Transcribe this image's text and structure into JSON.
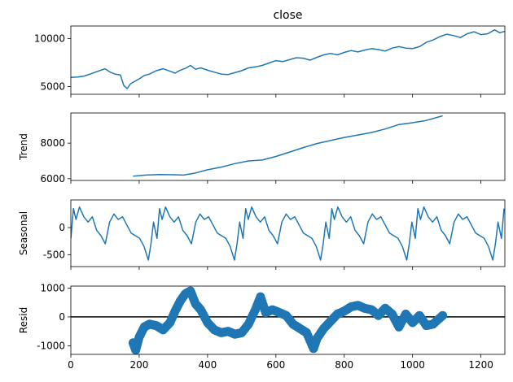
{
  "chart_data": [
    {
      "type": "line",
      "title": "close",
      "ylabel": "",
      "xlim": [
        0,
        1270
      ],
      "ylim": [
        4200,
        11300
      ],
      "yticks": [
        5000,
        10000
      ],
      "xticks": [
        0,
        200,
        400,
        600,
        800,
        1000,
        1200
      ],
      "show_xtick_labels": false,
      "color": "#1f77b4",
      "series": [
        {
          "x": [
            0,
            20,
            40,
            60,
            80,
            100,
            115,
            130,
            145,
            155,
            165,
            175,
            190,
            200,
            215,
            230,
            250,
            270,
            290,
            305,
            320,
            335,
            350,
            365,
            380,
            400,
            420,
            440,
            460,
            480,
            500,
            520,
            540,
            560,
            580,
            600,
            620,
            640,
            660,
            680,
            700,
            720,
            740,
            760,
            780,
            800,
            820,
            840,
            860,
            880,
            900,
            920,
            940,
            960,
            980,
            1000,
            1020,
            1040,
            1060,
            1080,
            1100,
            1120,
            1140,
            1160,
            1180,
            1200,
            1220,
            1240,
            1255,
            1270
          ],
          "y": [
            5950,
            6000,
            6100,
            6350,
            6600,
            6850,
            6500,
            6300,
            6200,
            5100,
            4800,
            5300,
            5600,
            5800,
            6150,
            6300,
            6650,
            6850,
            6600,
            6400,
            6700,
            6900,
            7200,
            6800,
            6950,
            6700,
            6500,
            6300,
            6250,
            6450,
            6650,
            6950,
            7050,
            7200,
            7450,
            7700,
            7600,
            7800,
            8000,
            7950,
            7750,
            8050,
            8300,
            8450,
            8300,
            8550,
            8750,
            8600,
            8800,
            8950,
            8850,
            8700,
            9000,
            9150,
            9000,
            8950,
            9150,
            9600,
            9850,
            10200,
            10450,
            10300,
            10100,
            10500,
            10700,
            10400,
            10500,
            10900,
            10600,
            10750
          ]
        }
      ]
    },
    {
      "type": "line",
      "title": "",
      "ylabel": "Trend",
      "xlim": [
        0,
        1270
      ],
      "ylim": [
        5900,
        9700
      ],
      "yticks": [
        6000,
        8000
      ],
      "xticks": [
        0,
        200,
        400,
        600,
        800,
        1000,
        1200
      ],
      "show_xtick_labels": false,
      "color": "#1f77b4",
      "series": [
        {
          "x": [
            182,
            220,
            260,
            300,
            330,
            360,
            400,
            440,
            480,
            520,
            560,
            600,
            640,
            680,
            720,
            760,
            800,
            840,
            880,
            920,
            960,
            1000,
            1040,
            1088
          ],
          "y": [
            6140,
            6200,
            6230,
            6220,
            6200,
            6300,
            6500,
            6650,
            6850,
            7000,
            7050,
            7250,
            7500,
            7750,
            7980,
            8150,
            8320,
            8460,
            8600,
            8800,
            9050,
            9150,
            9280,
            9540
          ]
        }
      ]
    },
    {
      "type": "line",
      "title": "",
      "ylabel": "Seasonal",
      "xlim": [
        0,
        1270
      ],
      "ylim": [
        -720,
        510
      ],
      "yticks": [
        -500,
        0
      ],
      "xticks": [
        0,
        200,
        400,
        600,
        800,
        1000,
        1200
      ],
      "show_xtick_labels": false,
      "color": "#1f77b4",
      "period": 252,
      "series": [
        {
          "phase": [
            0,
            0.03,
            0.06,
            0.1,
            0.15,
            0.2,
            0.25,
            0.3,
            0.35,
            0.4,
            0.45,
            0.5,
            0.55,
            0.6,
            0.65,
            0.7,
            0.75,
            0.8,
            0.85,
            0.9,
            0.93,
            0.96,
            1.0
          ],
          "y": [
            -200,
            350,
            150,
            380,
            200,
            100,
            200,
            -50,
            -150,
            -300,
            100,
            250,
            150,
            200,
            50,
            -100,
            -150,
            -200,
            -350,
            -600,
            -300,
            100,
            -200
          ]
        }
      ]
    },
    {
      "type": "scatter",
      "title": "",
      "ylabel": "Resid",
      "xlim": [
        0,
        1270
      ],
      "ylim": [
        -1300,
        1070
      ],
      "yticks": [
        -1000,
        0,
        1000
      ],
      "xticks": [
        0,
        200,
        400,
        600,
        800,
        1000,
        1200
      ],
      "show_xtick_labels": true,
      "zero_line": true,
      "color": "#1f77b4",
      "series": [
        {
          "x": [
            182,
            190,
            200,
            215,
            230,
            250,
            270,
            290,
            305,
            320,
            335,
            350,
            365,
            380,
            400,
            420,
            440,
            460,
            480,
            500,
            520,
            540,
            555,
            570,
            590,
            610,
            630,
            650,
            670,
            690,
            710,
            720,
            740,
            760,
            780,
            800,
            820,
            840,
            860,
            880,
            900,
            920,
            940,
            960,
            980,
            1000,
            1020,
            1040,
            1060,
            1088
          ],
          "y": [
            -900,
            -1150,
            -700,
            -350,
            -250,
            -300,
            -450,
            -200,
            200,
            550,
            800,
            900,
            450,
            250,
            -200,
            -450,
            -550,
            -500,
            -600,
            -550,
            -250,
            250,
            700,
            150,
            250,
            150,
            50,
            -250,
            -400,
            -550,
            -1100,
            -750,
            -400,
            -150,
            100,
            200,
            350,
            400,
            300,
            250,
            50,
            300,
            100,
            -350,
            100,
            -200,
            50,
            -300,
            -250,
            50
          ]
        }
      ]
    }
  ]
}
